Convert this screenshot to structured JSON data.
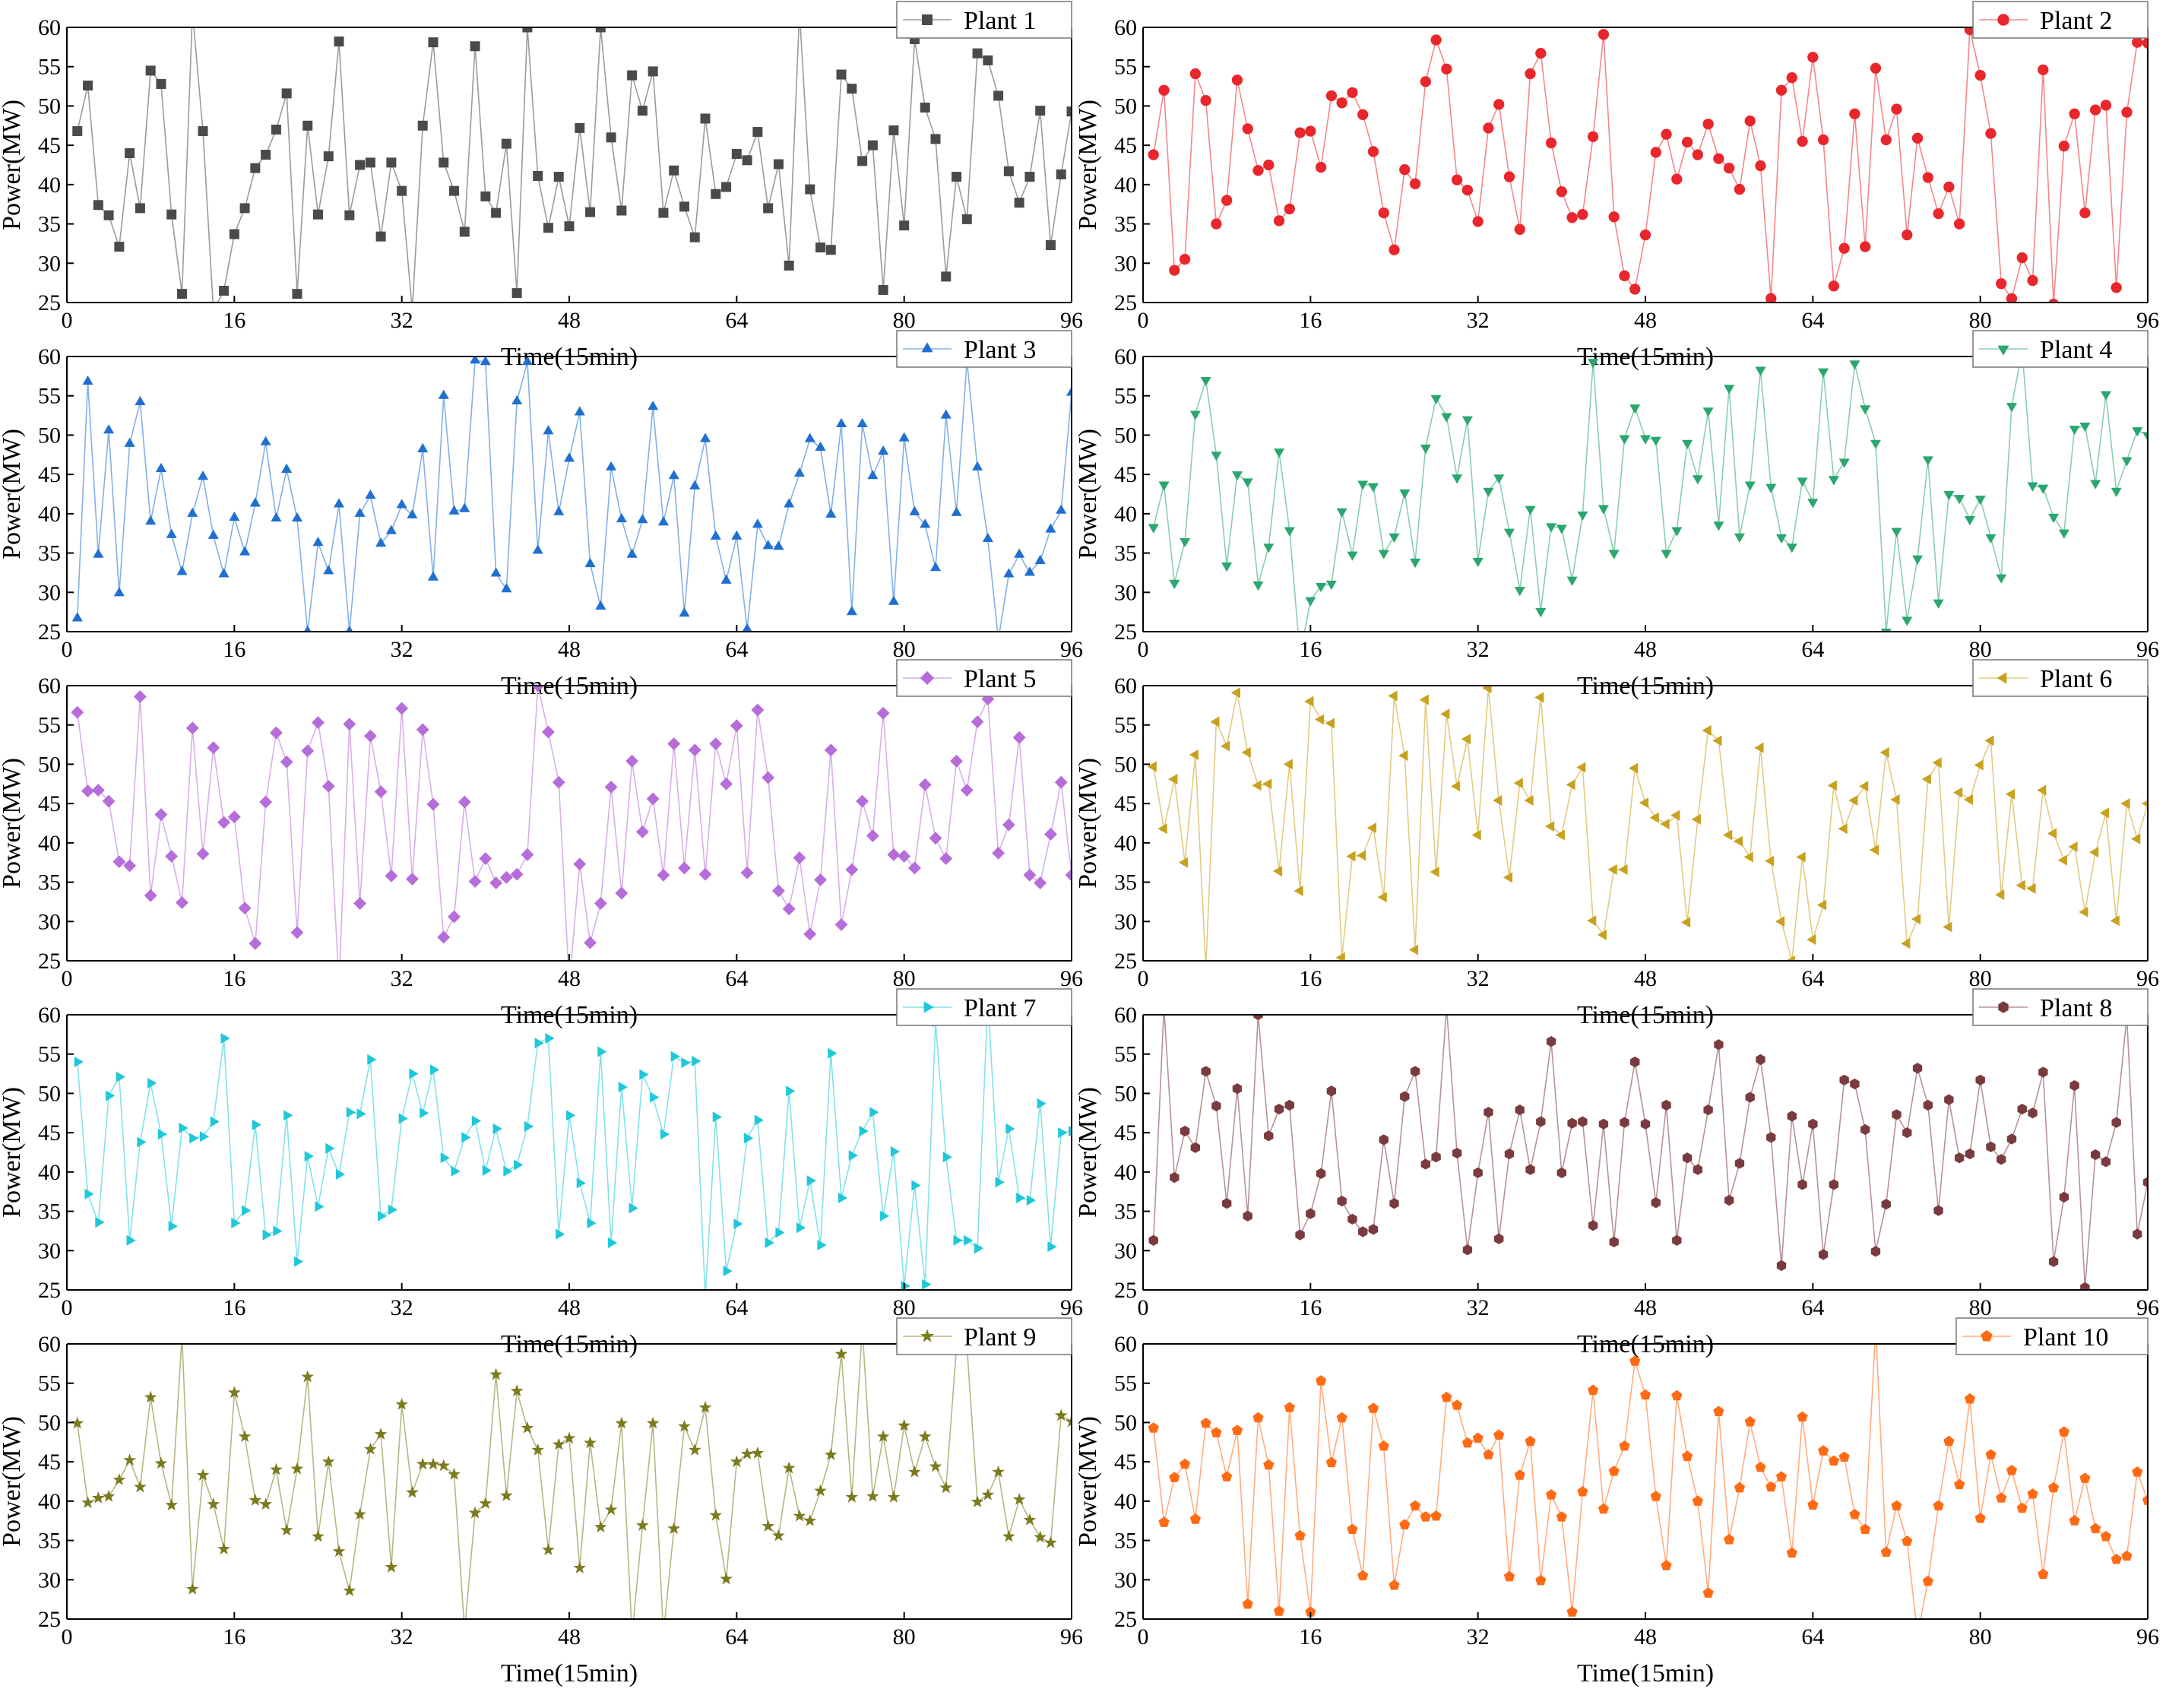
{
  "chart_data": [
    {
      "type": "line",
      "xlabel": "Time(15min)",
      "ylabel": "Power(MW)",
      "xlim": [
        0,
        96
      ],
      "ylim": [
        25,
        60
      ],
      "xticks": [
        0,
        16,
        32,
        48,
        64,
        80,
        96
      ],
      "yticks": [
        25,
        30,
        35,
        40,
        45,
        50,
        55,
        60
      ],
      "legend_position": "top-right",
      "series": [
        {
          "name": "Plant 1",
          "color": "#4a4a4a",
          "marker": "square",
          "values": [
            46.8,
            52.6,
            37.4,
            36.1,
            32.1,
            44.0,
            37.0,
            54.5,
            52.8,
            36.2,
            26.1,
            62.0,
            46.8,
            24.0,
            26.5,
            33.7,
            37.0,
            42.1,
            43.8,
            47.0,
            51.6,
            26.1,
            47.5,
            36.2,
            43.6,
            58.2,
            36.1,
            42.5,
            42.8,
            33.4,
            42.8,
            39.2,
            24.0,
            47.5,
            58.1,
            42.8,
            39.2,
            34.0,
            57.6,
            38.5,
            36.4,
            45.2,
            26.2,
            60.0,
            41.1,
            34.5,
            41.0,
            34.7,
            47.2,
            36.5,
            60.0,
            46.0,
            36.7,
            53.9,
            49.4,
            54.4,
            36.4,
            41.8,
            37.2,
            33.3,
            48.4,
            38.8,
            39.7,
            43.9,
            43.1,
            46.7,
            37.0,
            42.6,
            29.7,
            62.0,
            39.4,
            32.0,
            31.7,
            54.0,
            52.2,
            43.0,
            45.0,
            26.6,
            46.9,
            34.8,
            58.5,
            49.8,
            45.8,
            28.3,
            41.0,
            35.6,
            56.7,
            55.8,
            51.3,
            41.7,
            37.7,
            41.0,
            49.4,
            32.3,
            41.3,
            49.3
          ]
        },
        {
          "name": "Plant 2",
          "color": "#e8262c",
          "marker": "circle",
          "values": [
            43.8,
            52.0,
            29.1,
            30.5,
            54.1,
            50.7,
            35.0,
            38.0,
            53.3,
            47.1,
            41.8,
            42.5,
            35.4,
            36.9,
            46.6,
            46.8,
            42.2,
            51.3,
            50.4,
            51.7,
            48.9,
            44.2,
            36.4,
            31.7,
            41.9,
            40.1,
            53.1,
            58.4,
            54.7,
            40.6,
            39.3,
            35.3,
            47.2,
            50.2,
            41.0,
            34.3,
            54.1,
            56.7,
            45.3,
            39.1,
            35.8,
            36.2,
            46.1,
            59.1,
            35.9,
            28.4,
            26.7,
            33.6,
            44.1,
            46.4,
            40.7,
            45.4,
            43.8,
            47.7,
            43.3,
            42.1,
            39.4,
            48.1,
            42.4,
            25.5,
            52.0,
            53.6,
            45.5,
            56.2,
            45.7,
            27.1,
            31.9,
            49.0,
            32.1,
            54.8,
            45.7,
            49.6,
            33.6,
            45.9,
            40.9,
            36.3,
            39.7,
            35.0,
            59.7,
            53.9,
            46.5,
            27.4,
            25.5,
            30.7,
            27.8,
            54.6,
            24.8,
            44.9,
            49.0,
            36.4,
            49.5,
            50.1,
            26.9,
            49.2,
            58.1,
            58.0
          ]
        },
        {
          "name": "Plant 3",
          "color": "#1f6fd1",
          "marker": "triangle-up",
          "values": [
            26.7,
            56.8,
            34.8,
            50.6,
            29.9,
            48.9,
            54.2,
            39.0,
            45.7,
            37.3,
            32.6,
            40.0,
            44.7,
            37.2,
            32.3,
            39.5,
            35.1,
            41.3,
            49.1,
            39.4,
            45.6,
            39.4,
            25.0,
            36.3,
            32.7,
            41.2,
            25.0,
            40.0,
            42.3,
            36.2,
            37.8,
            41.1,
            39.8,
            48.2,
            31.9,
            55.0,
            40.3,
            40.6,
            59.5,
            59.3,
            32.4,
            30.4,
            54.3,
            59.3,
            35.3,
            50.5,
            40.2,
            47.0,
            52.9,
            33.6,
            28.2,
            45.9,
            39.3,
            34.8,
            39.2,
            53.6,
            38.9,
            44.8,
            27.3,
            43.5,
            49.5,
            37.1,
            31.5,
            37.1,
            25.3,
            38.6,
            35.9,
            35.8,
            41.2,
            45.1,
            49.5,
            48.4,
            39.9,
            51.4,
            27.5,
            51.4,
            44.8,
            47.9,
            28.8,
            49.6,
            40.2,
            38.6,
            33.1,
            52.5,
            40.1,
            59.5,
            45.9,
            36.8,
            24.0,
            32.3,
            34.8,
            32.5,
            34.0,
            38.0,
            40.4,
            55.4
          ]
        },
        {
          "name": "Plant 4",
          "color": "#2aa66e",
          "marker": "triangle-down",
          "values": [
            38.3,
            43.7,
            31.2,
            36.5,
            52.7,
            57.0,
            47.5,
            33.4,
            45.0,
            44.1,
            31.0,
            35.8,
            47.9,
            37.9,
            22.0,
            29.0,
            30.8,
            31.1,
            40.3,
            34.8,
            43.8,
            43.5,
            35.0,
            37.1,
            42.7,
            33.9,
            48.4,
            54.7,
            52.4,
            44.6,
            52.0,
            34.0,
            42.9,
            44.6,
            37.7,
            30.3,
            40.6,
            27.6,
            38.4,
            38.2,
            31.6,
            39.9,
            59.3,
            40.7,
            35.0,
            49.6,
            53.5,
            49.6,
            49.4,
            35.0,
            37.9,
            49.0,
            44.5,
            53.1,
            38.6,
            56.0,
            37.1,
            43.7,
            58.3,
            43.4,
            37.0,
            35.8,
            44.2,
            41.5,
            58.1,
            44.4,
            46.6,
            59.1,
            53.4,
            49.0,
            25.0,
            37.8,
            26.5,
            34.3,
            46.9,
            28.7,
            42.5,
            42.0,
            39.3,
            41.9,
            37.0,
            31.9,
            53.7,
            60.8,
            43.6,
            43.3,
            39.6,
            37.6,
            50.8,
            51.2,
            43.9,
            55.2,
            42.9,
            46.8,
            50.6,
            50.0
          ]
        },
        {
          "name": "Plant 5",
          "color": "#b66dd9",
          "marker": "diamond",
          "values": [
            56.6,
            46.6,
            46.7,
            45.3,
            37.6,
            37.1,
            58.6,
            33.3,
            43.6,
            38.3,
            32.4,
            54.6,
            38.6,
            52.1,
            42.6,
            43.3,
            31.7,
            27.2,
            45.2,
            54.0,
            50.3,
            28.6,
            51.7,
            55.3,
            47.2,
            22.0,
            55.1,
            32.3,
            53.6,
            46.5,
            35.8,
            57.1,
            35.4,
            54.4,
            44.9,
            28.0,
            30.6,
            45.2,
            35.1,
            38.0,
            34.9,
            35.6,
            36.0,
            38.5,
            60.0,
            54.1,
            47.7,
            22.0,
            37.3,
            27.3,
            32.3,
            47.1,
            33.6,
            50.4,
            41.4,
            45.6,
            35.9,
            52.6,
            36.8,
            51.8,
            36.0,
            52.6,
            47.5,
            54.9,
            36.2,
            56.9,
            48.3,
            33.9,
            31.6,
            38.1,
            28.4,
            35.3,
            51.8,
            29.6,
            36.6,
            45.3,
            40.9,
            56.5,
            38.5,
            38.3,
            36.8,
            47.4,
            40.6,
            38.0,
            50.4,
            46.7,
            55.4,
            58.3,
            38.7,
            42.3,
            53.4,
            35.9,
            34.9,
            41.1,
            47.7,
            35.9
          ]
        },
        {
          "name": "Plant 6",
          "color": "#c8a11e",
          "marker": "triangle-left",
          "values": [
            49.7,
            41.8,
            48.1,
            37.5,
            51.2,
            24.0,
            55.4,
            52.3,
            59.1,
            51.5,
            47.3,
            47.5,
            36.4,
            50.0,
            33.9,
            58.0,
            55.7,
            55.2,
            25.4,
            38.3,
            38.4,
            41.9,
            33.1,
            58.7,
            51.1,
            26.4,
            58.2,
            36.3,
            56.4,
            47.2,
            53.2,
            41.0,
            59.7,
            45.4,
            35.6,
            47.6,
            45.4,
            58.5,
            42.1,
            41.0,
            47.4,
            49.6,
            30.1,
            28.3,
            36.6,
            36.6,
            49.5,
            45.1,
            43.2,
            42.4,
            43.5,
            29.9,
            43.0,
            54.3,
            53.0,
            41.0,
            40.2,
            38.2,
            52.1,
            37.7,
            30.0,
            25.0,
            38.2,
            27.7,
            32.1,
            47.3,
            41.8,
            45.4,
            47.2,
            39.1,
            51.5,
            45.5,
            27.2,
            30.3,
            48.1,
            50.2,
            29.3,
            46.4,
            45.5,
            49.9,
            53.0,
            33.4,
            46.2,
            34.6,
            34.2,
            46.7,
            41.2,
            37.8,
            39.5,
            31.2,
            38.8,
            43.8,
            30.1,
            45.0,
            40.5,
            45.0
          ]
        },
        {
          "name": "Plant 7",
          "color": "#1ec8d8",
          "marker": "triangle-right",
          "values": [
            54.0,
            37.2,
            33.6,
            49.7,
            52.1,
            31.3,
            43.8,
            51.3,
            44.8,
            33.1,
            45.6,
            44.3,
            44.5,
            46.4,
            57.0,
            33.5,
            35.1,
            46.0,
            32.0,
            32.5,
            47.2,
            28.6,
            42.0,
            35.6,
            43.0,
            39.7,
            47.6,
            47.4,
            54.3,
            34.4,
            35.2,
            46.8,
            52.5,
            47.5,
            53.0,
            41.8,
            40.1,
            44.4,
            46.5,
            40.2,
            45.5,
            40.1,
            40.9,
            45.8,
            56.4,
            57.0,
            32.1,
            47.2,
            38.6,
            33.5,
            55.3,
            31.0,
            50.8,
            35.4,
            52.4,
            49.5,
            44.8,
            54.7,
            53.9,
            54.1,
            24.0,
            47.0,
            27.4,
            33.4,
            44.3,
            46.6,
            31.0,
            32.3,
            50.3,
            32.9,
            38.9,
            30.7,
            55.1,
            36.7,
            42.1,
            45.2,
            47.6,
            34.4,
            42.6,
            25.5,
            38.3,
            25.7,
            59.1,
            41.9,
            31.3,
            31.3,
            30.3,
            62.0,
            38.7,
            45.5,
            36.7,
            36.4,
            48.7,
            30.5,
            45.0,
            45.2
          ]
        },
        {
          "name": "Plant 8",
          "color": "#7a3b3f",
          "marker": "hexagon",
          "values": [
            31.3,
            61.0,
            39.3,
            45.2,
            43.1,
            52.8,
            48.4,
            36.0,
            50.6,
            34.4,
            60.0,
            44.6,
            48.0,
            48.5,
            32.0,
            34.7,
            39.8,
            50.3,
            36.3,
            34.0,
            32.4,
            32.7,
            44.1,
            36.0,
            49.6,
            52.8,
            41.0,
            41.9,
            61.0,
            42.4,
            30.1,
            39.9,
            47.6,
            31.5,
            42.3,
            47.9,
            40.3,
            46.4,
            56.6,
            39.9,
            46.2,
            46.4,
            33.2,
            46.1,
            31.1,
            46.3,
            54.0,
            46.1,
            36.1,
            48.5,
            31.3,
            41.8,
            40.3,
            47.9,
            56.2,
            36.4,
            41.1,
            49.5,
            54.3,
            44.4,
            28.1,
            47.1,
            38.4,
            46.1,
            29.5,
            38.4,
            51.7,
            51.2,
            45.4,
            29.9,
            35.9,
            47.3,
            45.0,
            53.2,
            48.5,
            35.1,
            49.2,
            41.8,
            42.3,
            51.7,
            43.2,
            41.6,
            44.2,
            48.0,
            47.5,
            52.7,
            28.6,
            36.8,
            51.0,
            25.3,
            42.2,
            41.3,
            46.3,
            59.8,
            32.1,
            38.7
          ]
        },
        {
          "name": "Plant 9",
          "color": "#7c7a1e",
          "marker": "star",
          "values": [
            49.9,
            39.8,
            40.4,
            40.6,
            42.7,
            45.2,
            41.8,
            53.2,
            44.8,
            39.5,
            61.0,
            28.8,
            43.3,
            39.6,
            33.9,
            53.8,
            48.2,
            40.1,
            39.6,
            44.0,
            36.3,
            44.1,
            55.8,
            35.5,
            45.0,
            33.6,
            28.6,
            38.3,
            46.6,
            48.5,
            31.6,
            52.3,
            41.1,
            44.7,
            44.7,
            44.5,
            43.4,
            23.5,
            38.5,
            39.7,
            56.1,
            40.7,
            54.0,
            49.3,
            46.5,
            33.8,
            47.2,
            48.0,
            31.5,
            47.4,
            36.7,
            38.9,
            49.9,
            23.0,
            36.9,
            49.9,
            23.0,
            36.5,
            49.5,
            46.5,
            51.9,
            38.2,
            30.1,
            45.0,
            46.0,
            46.1,
            36.8,
            35.6,
            44.2,
            38.1,
            37.5,
            41.3,
            45.9,
            58.7,
            40.5,
            62.0,
            40.6,
            48.2,
            40.5,
            49.6,
            43.7,
            48.2,
            44.4,
            41.7,
            59.5,
            59.7,
            39.9,
            40.8,
            43.7,
            35.5,
            40.2,
            37.6,
            35.4,
            34.7,
            50.9,
            50.1
          ]
        },
        {
          "name": "Plant 10",
          "color": "#ff6a13",
          "marker": "pentagon",
          "values": [
            49.3,
            37.3,
            43.0,
            44.7,
            37.7,
            49.9,
            48.7,
            43.1,
            49.0,
            26.9,
            50.6,
            44.6,
            26.0,
            51.9,
            35.6,
            25.9,
            55.3,
            44.9,
            50.6,
            36.4,
            30.5,
            51.8,
            47.0,
            29.3,
            37.0,
            39.4,
            38.0,
            38.1,
            53.2,
            52.2,
            47.4,
            48.0,
            45.9,
            48.4,
            30.4,
            43.3,
            47.6,
            29.9,
            40.8,
            38.0,
            25.9,
            41.2,
            54.1,
            39.0,
            43.8,
            47.0,
            57.8,
            53.5,
            40.6,
            31.8,
            53.4,
            45.7,
            40.0,
            28.3,
            51.4,
            35.1,
            41.7,
            50.1,
            44.3,
            41.8,
            43.1,
            33.4,
            50.7,
            39.5,
            46.4,
            45.1,
            45.6,
            38.3,
            36.4,
            62.0,
            33.5,
            39.4,
            34.9,
            23.0,
            29.8,
            39.4,
            47.6,
            42.1,
            53.0,
            37.8,
            45.9,
            40.4,
            43.9,
            39.1,
            40.9,
            30.7,
            41.7,
            48.8,
            37.5,
            42.9,
            36.5,
            35.5,
            32.6,
            33.0,
            43.7,
            40.1
          ]
        }
      ]
    }
  ]
}
